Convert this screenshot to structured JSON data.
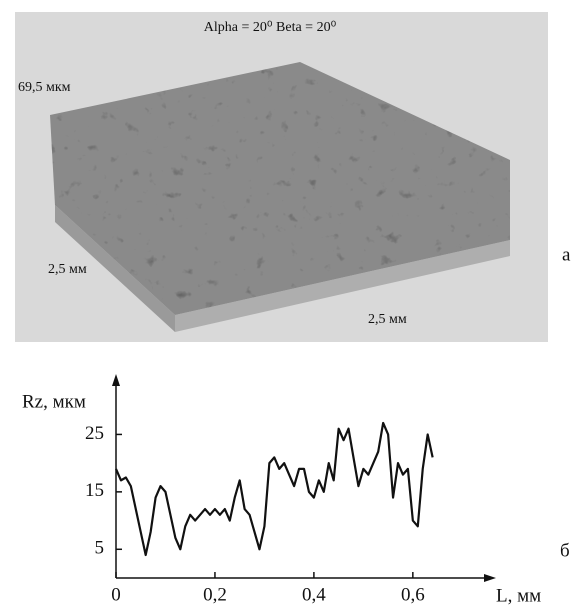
{
  "surface": {
    "title": "Alpha = 20⁰ Beta = 20⁰",
    "z_label": "69,5 мкм",
    "y_label": "2,5 мм",
    "x_label": "2,5 мм",
    "panel_label": "а"
  },
  "chart_data": {
    "type": "line",
    "panel_label": "б",
    "ylabel": "Rz, мкм",
    "xlabel": "L, мм",
    "color": "#111111",
    "x": [
      0,
      0.01,
      0.02,
      0.03,
      0.04,
      0.05,
      0.06,
      0.07,
      0.08,
      0.09,
      0.1,
      0.11,
      0.12,
      0.13,
      0.14,
      0.15,
      0.16,
      0.17,
      0.18,
      0.19,
      0.2,
      0.21,
      0.22,
      0.23,
      0.24,
      0.25,
      0.26,
      0.27,
      0.28,
      0.29,
      0.3,
      0.31,
      0.32,
      0.33,
      0.34,
      0.35,
      0.36,
      0.37,
      0.38,
      0.39,
      0.4,
      0.41,
      0.42,
      0.43,
      0.44,
      0.45,
      0.46,
      0.47,
      0.48,
      0.49,
      0.5,
      0.51,
      0.52,
      0.53,
      0.54,
      0.55,
      0.56,
      0.57,
      0.58,
      0.59,
      0.6,
      0.61,
      0.62,
      0.63,
      0.64
    ],
    "values": [
      19,
      17,
      17.5,
      16,
      12,
      8,
      4,
      8,
      14,
      16,
      15,
      11,
      7,
      5,
      9,
      11,
      10,
      11,
      12,
      11,
      12,
      11,
      12,
      10,
      14,
      17,
      12,
      11,
      8,
      5,
      9,
      20,
      21,
      19,
      20,
      18,
      16,
      19,
      19,
      15,
      14,
      17,
      15,
      20,
      17,
      26,
      24,
      26,
      21,
      16,
      19,
      18,
      20,
      22,
      27,
      25,
      14,
      20,
      18,
      19,
      10,
      9,
      19,
      25,
      21
    ],
    "xlim": [
      0,
      0.76
    ],
    "ylim": [
      0,
      35
    ],
    "xticks": [
      0,
      {
        "value": 0.2,
        "label": "0,2"
      },
      {
        "value": 0.4,
        "label": "0,4"
      },
      {
        "value": 0.6,
        "label": "0,6"
      }
    ],
    "yticks": [
      5,
      15,
      25
    ]
  }
}
